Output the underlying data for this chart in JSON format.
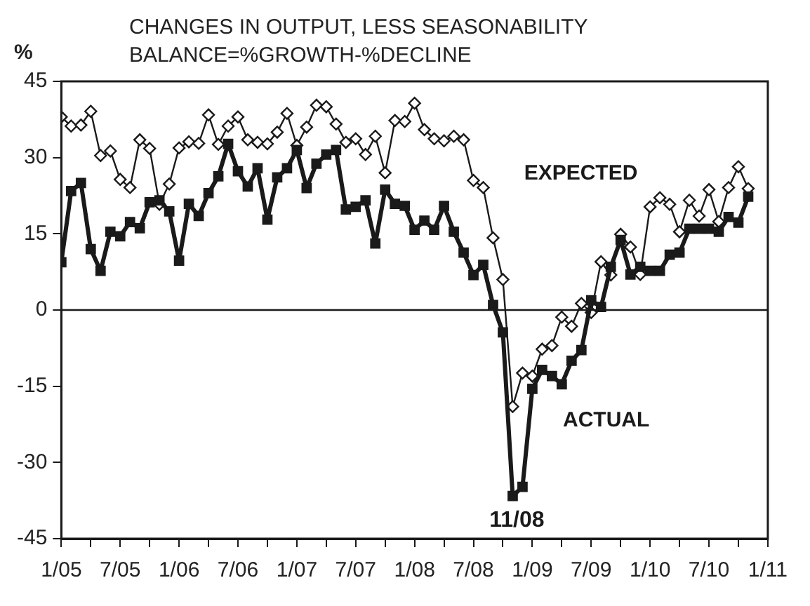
{
  "chart_data": {
    "type": "line",
    "title": "CHANGES IN OUTPUT, LESS SEASONABILITY",
    "subtitle": "BALANCE=%GROWTH-%DECLINE",
    "ylabel": "%",
    "x": [
      "2005-01",
      "2005-02",
      "2005-03",
      "2005-04",
      "2005-05",
      "2005-06",
      "2005-07",
      "2005-08",
      "2005-09",
      "2005-10",
      "2005-11",
      "2005-12",
      "2006-01",
      "2006-02",
      "2006-03",
      "2006-04",
      "2006-05",
      "2006-06",
      "2006-07",
      "2006-08",
      "2006-09",
      "2006-10",
      "2006-11",
      "2006-12",
      "2007-01",
      "2007-02",
      "2007-03",
      "2007-04",
      "2007-05",
      "2007-06",
      "2007-07",
      "2007-08",
      "2007-09",
      "2007-10",
      "2007-11",
      "2007-12",
      "2008-01",
      "2008-02",
      "2008-03",
      "2008-04",
      "2008-05",
      "2008-06",
      "2008-07",
      "2008-08",
      "2008-09",
      "2008-10",
      "2008-11",
      "2008-12",
      "2009-01",
      "2009-02",
      "2009-03",
      "2009-04",
      "2009-05",
      "2009-06",
      "2009-07",
      "2009-08",
      "2009-09",
      "2009-10",
      "2009-11",
      "2009-12",
      "2010-01",
      "2010-02",
      "2010-03",
      "2010-04",
      "2010-05",
      "2010-06",
      "2010-07",
      "2010-08",
      "2010-09",
      "2010-10",
      "2010-11"
    ],
    "series": [
      {
        "name": "EXPECTED",
        "color": "#1a1a1a",
        "marker": "diamond",
        "values": [
          38,
          36.2,
          36.4,
          39.1,
          30.4,
          31.3,
          25.7,
          24.1,
          33.5,
          31.8,
          20.8,
          24.8,
          31.9,
          33.1,
          32.8,
          38.4,
          32.6,
          36.2,
          38,
          33.5,
          33,
          32.7,
          35,
          38.7,
          32.4,
          36,
          40.3,
          40,
          36.6,
          33,
          33.7,
          30.6,
          34.2,
          27,
          37.3,
          37.1,
          40.7,
          35.5,
          33.7,
          33.3,
          34.2,
          33.5,
          25.5,
          24.1,
          14.2,
          6,
          -19,
          -12.4,
          -13,
          -7.7,
          -7,
          -1.4,
          -3.2,
          1.3,
          -0.5,
          9.5,
          6.9,
          14.9,
          12.4,
          7,
          20.3,
          22.1,
          20.8,
          15.4,
          21.6,
          18.5,
          23.7,
          17.4,
          24.1,
          28.2,
          23.9
        ]
      },
      {
        "name": "ACTUAL",
        "color": "#1a1a1a",
        "marker": "square",
        "values": [
          9.4,
          23.4,
          25,
          12,
          7.7,
          15.4,
          14.5,
          17.3,
          16.1,
          21.2,
          21.6,
          19.4,
          9.7,
          20.9,
          18.5,
          23,
          26.3,
          32.7,
          27.3,
          24.3,
          27.9,
          17.8,
          26.1,
          27.9,
          31.5,
          24,
          28.8,
          30.6,
          31.5,
          19.8,
          20.3,
          21.6,
          13.1,
          23.7,
          20.9,
          20.5,
          15.8,
          17.6,
          15.8,
          20.5,
          15.4,
          11.3,
          6.9,
          8.9,
          1,
          -4.4,
          -36.6,
          -34.8,
          -15.5,
          -11.8,
          -13,
          -14.6,
          -10,
          -7.9,
          1.9,
          0.6,
          8.5,
          13.8,
          7,
          8.5,
          7.7,
          7.7,
          10.9,
          11.3,
          16,
          16,
          16,
          15.4,
          18.3,
          17.2,
          22.3
        ]
      }
    ],
    "xlim": [
      "2005-01",
      "2011-01"
    ],
    "xticks": [
      {
        "value": "2005-01",
        "label": "1/05"
      },
      {
        "value": "2005-04",
        "label": null
      },
      {
        "value": "2005-07",
        "label": "7/05"
      },
      {
        "value": "2005-10",
        "label": null
      },
      {
        "value": "2006-01",
        "label": "1/06"
      },
      {
        "value": "2006-04",
        "label": null
      },
      {
        "value": "2006-07",
        "label": "7/06"
      },
      {
        "value": "2006-10",
        "label": null
      },
      {
        "value": "2007-01",
        "label": "1/07"
      },
      {
        "value": "2007-04",
        "label": null
      },
      {
        "value": "2007-07",
        "label": "7/07"
      },
      {
        "value": "2007-10",
        "label": null
      },
      {
        "value": "2008-01",
        "label": "1/08"
      },
      {
        "value": "2008-04",
        "label": null
      },
      {
        "value": "2008-07",
        "label": "7/08"
      },
      {
        "value": "2008-10",
        "label": null
      },
      {
        "value": "2009-01",
        "label": "1/09"
      },
      {
        "value": "2009-04",
        "label": null
      },
      {
        "value": "2009-07",
        "label": "7/09"
      },
      {
        "value": "2009-10",
        "label": null
      },
      {
        "value": "2010-01",
        "label": "1/10"
      },
      {
        "value": "2010-04",
        "label": null
      },
      {
        "value": "2010-07",
        "label": "7/10"
      },
      {
        "value": "2010-10",
        "label": null
      },
      {
        "value": "2011-01",
        "label": "1/11"
      }
    ],
    "ylim": [
      -45,
      45
    ],
    "yticks": [
      -45,
      -30,
      -15,
      0,
      15,
      30,
      45
    ],
    "ref_lines": [
      {
        "axis": "y",
        "value": 0
      }
    ],
    "annotations": [
      {
        "text": "11/08",
        "x": "2008-11",
        "y": -36.6
      }
    ],
    "grid": false,
    "legend": false
  }
}
